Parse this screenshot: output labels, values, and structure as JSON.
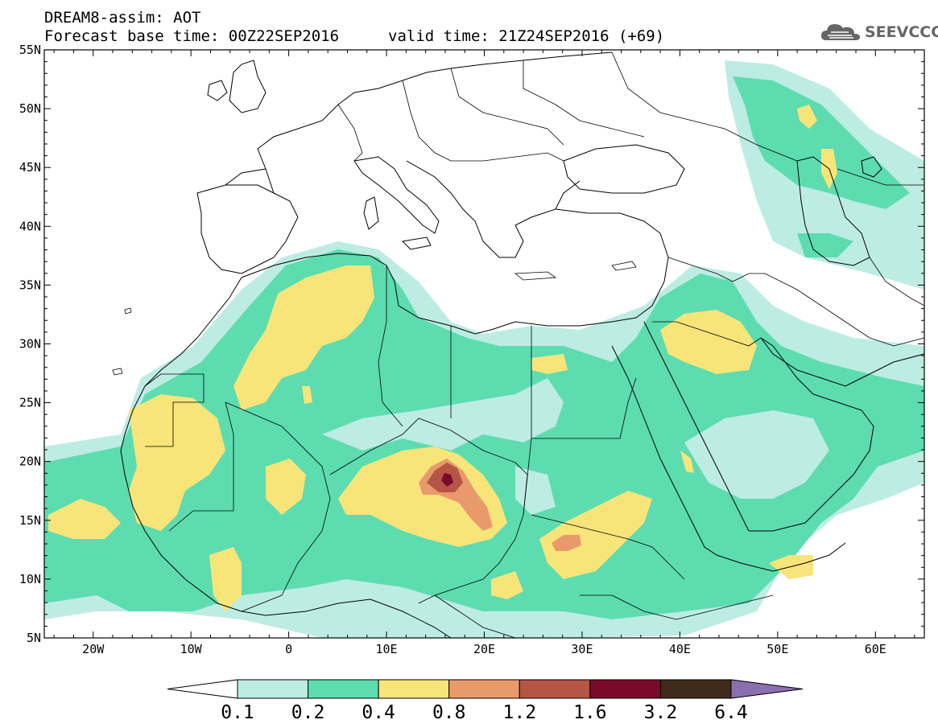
{
  "header": {
    "line1": "DREAM8-assim: AOT",
    "base_time": "Forecast base time: 00Z22SEP2016",
    "valid_time": "valid time: 21Z24SEP2016 (+69)"
  },
  "logo": {
    "text": "SEEVCCC",
    "icon": "cloud-icon"
  },
  "map": {
    "lat_labels": [
      "55N",
      "50N",
      "45N",
      "40N",
      "35N",
      "30N",
      "25N",
      "20N",
      "15N",
      "10N",
      "5N"
    ],
    "lon_labels": [
      "20W",
      "10W",
      "0",
      "10E",
      "20E",
      "30E",
      "40E",
      "50E",
      "60E"
    ],
    "extent": {
      "lon_min": -25,
      "lon_max": 65,
      "lat_min": 5,
      "lat_max": 55
    }
  },
  "colorbar": {
    "levels": [
      "0.1",
      "0.2",
      "0.4",
      "0.8",
      "1.2",
      "1.6",
      "3.2",
      "6.4"
    ],
    "colors": [
      "#ffffff",
      "#bdece3",
      "#5ddcb0",
      "#f7e57a",
      "#e99a6c",
      "#b45546",
      "#7a0a2a",
      "#3f2a1b",
      "#8c6fb0"
    ]
  },
  "colors": {
    "aot_0_1": "#bdece3",
    "aot_0_2": "#5ddcb0",
    "aot_0_4": "#f7e57a",
    "aot_0_8": "#e99a6c",
    "aot_1_2": "#b45546",
    "aot_1_6": "#7a0a2a"
  }
}
